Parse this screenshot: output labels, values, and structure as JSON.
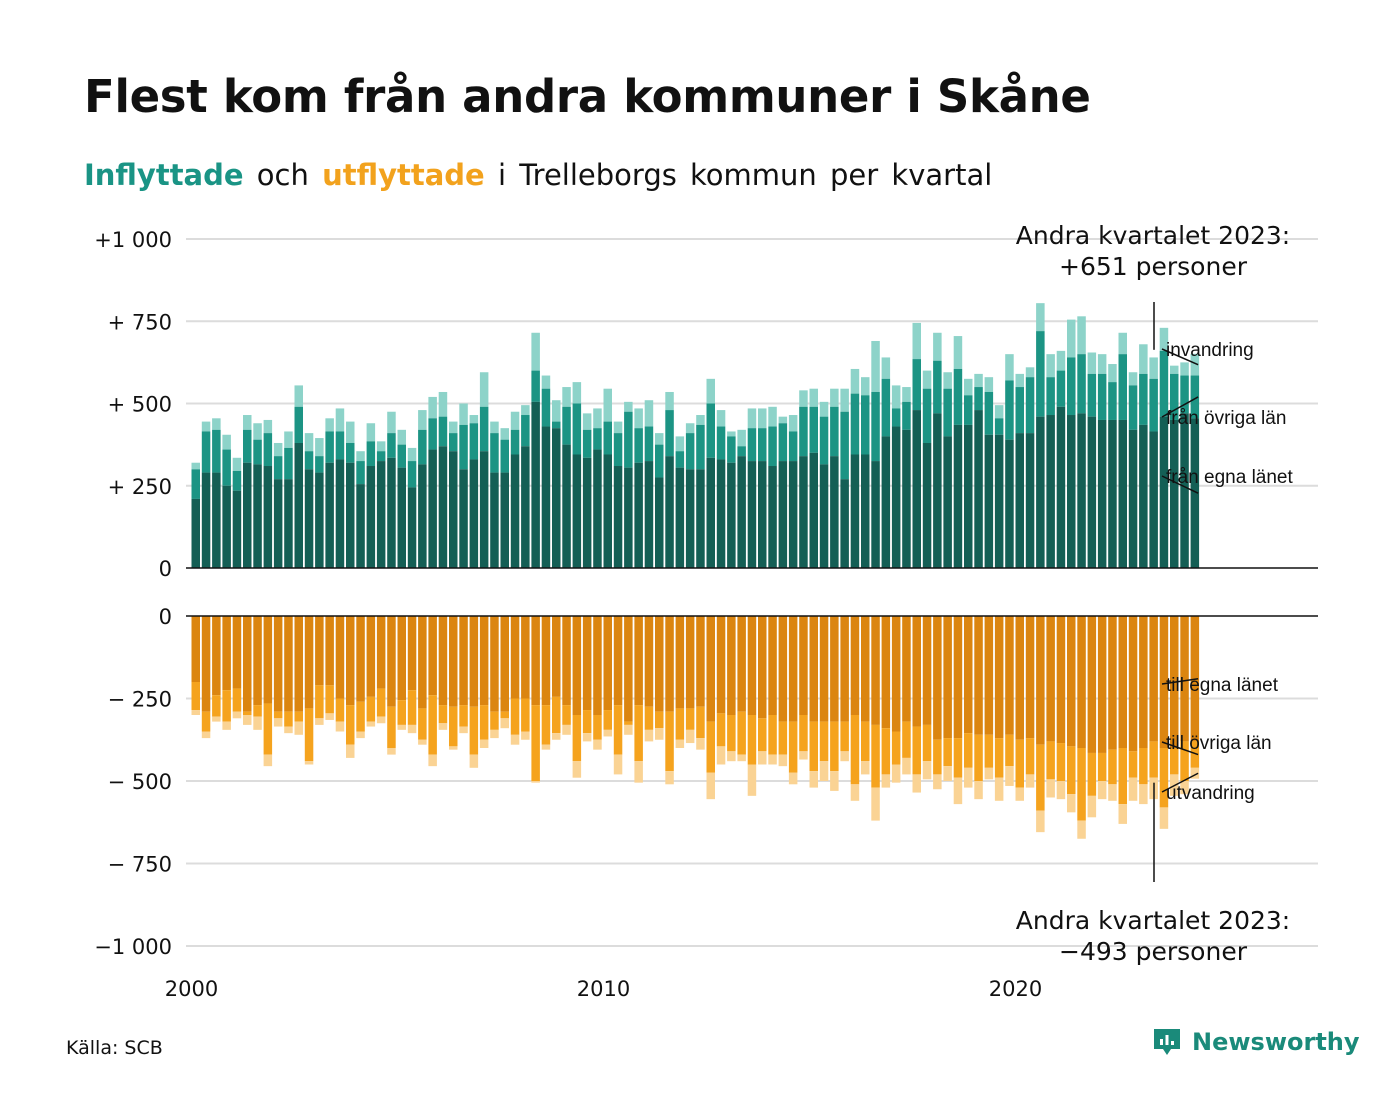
{
  "title": "Flest kom från andra kommuner i Skåne",
  "subtitle": {
    "in_word": "Inflyttade",
    "and_word": "och",
    "out_word": "utflyttade",
    "rest": "i Trelleborgs kommun per kvartal"
  },
  "source": "Källa: SCB",
  "brand": "Newsworthy",
  "colors": {
    "in_egna": "#145f55",
    "in_ovriga": "#1c9484",
    "in_invandring": "#8dd3c9",
    "out_egna": "#db8510",
    "out_ovriga": "#f5a31e",
    "out_utvandring": "#fad394",
    "brand": "#1a8a7a"
  },
  "chart_data": {
    "type": "bar",
    "stacked": true,
    "frequency": "quarterly",
    "start_period": "2000 Q1",
    "end_period": "2023 Q2",
    "x_ticks": [
      "2000",
      "2010",
      "2020"
    ],
    "upper_panel": {
      "ylim": [
        0,
        1000
      ],
      "y_ticks": [
        "+1 000",
        "+  750",
        "+  500",
        "+  250",
        "0"
      ],
      "y_tick_values": [
        1000,
        750,
        500,
        250,
        0
      ]
    },
    "lower_panel": {
      "ylim": [
        -1000,
        0
      ],
      "y_ticks": [
        "0",
        "−  250",
        "−  500",
        "−  750",
        "−1 000"
      ],
      "y_tick_values": [
        0,
        -250,
        -500,
        -750,
        -1000
      ]
    },
    "inflow_totals": [
      320,
      445,
      455,
      405,
      335,
      465,
      440,
      450,
      380,
      415,
      555,
      410,
      395,
      455,
      485,
      445,
      355,
      440,
      385,
      475,
      420,
      365,
      480,
      520,
      535,
      445,
      500,
      465,
      595,
      445,
      425,
      475,
      495,
      715,
      585,
      510,
      550,
      565,
      470,
      485,
      545,
      445,
      505,
      485,
      510,
      410,
      535,
      400,
      440,
      465,
      575,
      480,
      415,
      420,
      485,
      485,
      490,
      460,
      465,
      540,
      545,
      505,
      545,
      545,
      605,
      580,
      690,
      640,
      555,
      550,
      745,
      600,
      715,
      595,
      705,
      575,
      590,
      580,
      495,
      650,
      590,
      610,
      805,
      650,
      660,
      755,
      765,
      655,
      650,
      620,
      715,
      595,
      680,
      640,
      730,
      615,
      625,
      651
    ],
    "inflow_ovriga_tops": [
      300,
      415,
      420,
      360,
      295,
      420,
      390,
      410,
      340,
      365,
      490,
      355,
      340,
      415,
      415,
      380,
      325,
      385,
      355,
      410,
      375,
      325,
      420,
      455,
      460,
      410,
      435,
      440,
      490,
      410,
      390,
      420,
      465,
      600,
      545,
      445,
      490,
      500,
      420,
      425,
      445,
      410,
      475,
      425,
      430,
      375,
      480,
      355,
      410,
      435,
      500,
      430,
      400,
      370,
      425,
      425,
      430,
      440,
      415,
      490,
      490,
      460,
      490,
      475,
      530,
      525,
      535,
      575,
      485,
      505,
      635,
      545,
      630,
      545,
      605,
      525,
      550,
      535,
      455,
      570,
      550,
      580,
      720,
      580,
      600,
      640,
      650,
      590,
      590,
      565,
      650,
      555,
      590,
      575,
      660,
      590,
      585,
      585
    ],
    "inflow_egna": [
      210,
      290,
      290,
      250,
      235,
      320,
      315,
      310,
      270,
      270,
      380,
      300,
      290,
      320,
      330,
      320,
      255,
      310,
      325,
      335,
      305,
      245,
      315,
      360,
      370,
      355,
      300,
      330,
      355,
      290,
      290,
      345,
      370,
      505,
      430,
      425,
      375,
      345,
      335,
      360,
      345,
      310,
      305,
      320,
      325,
      275,
      340,
      305,
      300,
      300,
      335,
      330,
      320,
      340,
      325,
      325,
      310,
      325,
      325,
      340,
      350,
      315,
      340,
      270,
      345,
      345,
      325,
      400,
      430,
      420,
      480,
      380,
      470,
      400,
      435,
      435,
      480,
      405,
      405,
      390,
      410,
      410,
      460,
      465,
      490,
      465,
      470,
      460,
      450,
      450,
      450,
      420,
      435,
      415,
      460,
      450,
      470,
      455
    ],
    "outflow_egna": [
      -200,
      -290,
      -240,
      -225,
      -220,
      -290,
      -270,
      -265,
      -290,
      -290,
      -290,
      -280,
      -210,
      -210,
      -250,
      -270,
      -260,
      -245,
      -220,
      -275,
      -255,
      -225,
      -280,
      -240,
      -270,
      -275,
      -270,
      -275,
      -270,
      -290,
      -290,
      -250,
      -250,
      -270,
      -270,
      -245,
      -270,
      -300,
      -285,
      -300,
      -285,
      -270,
      -320,
      -270,
      -275,
      -290,
      -290,
      -280,
      -280,
      -275,
      -320,
      -295,
      -300,
      -290,
      -300,
      -310,
      -300,
      -320,
      -320,
      -300,
      -320,
      -320,
      -320,
      -320,
      -300,
      -320,
      -330,
      -340,
      -350,
      -320,
      -335,
      -330,
      -375,
      -370,
      -370,
      -355,
      -360,
      -360,
      -370,
      -360,
      -375,
      -370,
      -390,
      -380,
      -385,
      -395,
      -400,
      -415,
      -415,
      -405,
      -400,
      -410,
      -400,
      -380,
      -400,
      -400,
      -380,
      -380
    ],
    "outflow_ovriga_bottoms": [
      -285,
      -350,
      -305,
      -320,
      -290,
      -300,
      -305,
      -420,
      -310,
      -335,
      -320,
      -440,
      -310,
      -295,
      -320,
      -390,
      -350,
      -320,
      -305,
      -400,
      -330,
      -330,
      -375,
      -420,
      -325,
      -395,
      -335,
      -420,
      -375,
      -345,
      -310,
      -360,
      -350,
      -500,
      -390,
      -355,
      -330,
      -440,
      -355,
      -375,
      -345,
      -420,
      -330,
      -440,
      -345,
      -340,
      -470,
      -375,
      -345,
      -370,
      -475,
      -395,
      -410,
      -420,
      -450,
      -410,
      -420,
      -420,
      -475,
      -410,
      -470,
      -440,
      -470,
      -410,
      -510,
      -440,
      -520,
      -480,
      -450,
      -430,
      -480,
      -440,
      -480,
      -455,
      -490,
      -460,
      -500,
      -460,
      -490,
      -455,
      -520,
      -480,
      -590,
      -495,
      -500,
      -540,
      -620,
      -545,
      -500,
      -510,
      -570,
      -490,
      -510,
      -490,
      -580,
      -480,
      -500,
      -460
    ],
    "outflow_totals": [
      -300,
      -370,
      -320,
      -345,
      -310,
      -330,
      -345,
      -455,
      -335,
      -355,
      -360,
      -450,
      -330,
      -315,
      -350,
      -430,
      -370,
      -335,
      -325,
      -420,
      -345,
      -355,
      -390,
      -455,
      -345,
      -405,
      -355,
      -460,
      -400,
      -370,
      -340,
      -390,
      -375,
      -505,
      -405,
      -375,
      -360,
      -490,
      -380,
      -405,
      -365,
      -480,
      -360,
      -505,
      -380,
      -375,
      -510,
      -400,
      -385,
      -405,
      -555,
      -450,
      -440,
      -440,
      -545,
      -450,
      -450,
      -455,
      -510,
      -435,
      -520,
      -500,
      -530,
      -440,
      -560,
      -480,
      -620,
      -520,
      -505,
      -480,
      -535,
      -495,
      -525,
      -500,
      -570,
      -520,
      -555,
      -495,
      -560,
      -515,
      -560,
      -520,
      -655,
      -550,
      -555,
      -595,
      -675,
      -610,
      -555,
      -560,
      -630,
      -560,
      -570,
      -555,
      -645,
      -545,
      -540,
      -493
    ],
    "segment_labels_in": [
      "invandring",
      "från övriga län",
      "från egna länet"
    ],
    "segment_labels_out": [
      "till egna länet",
      "till övriga län",
      "utvandring"
    ],
    "annotation_top": [
      "Andra kvartalet 2023:",
      "+651 personer"
    ],
    "annotation_bottom": [
      "Andra kvartalet 2023:",
      "−493 personer"
    ]
  }
}
